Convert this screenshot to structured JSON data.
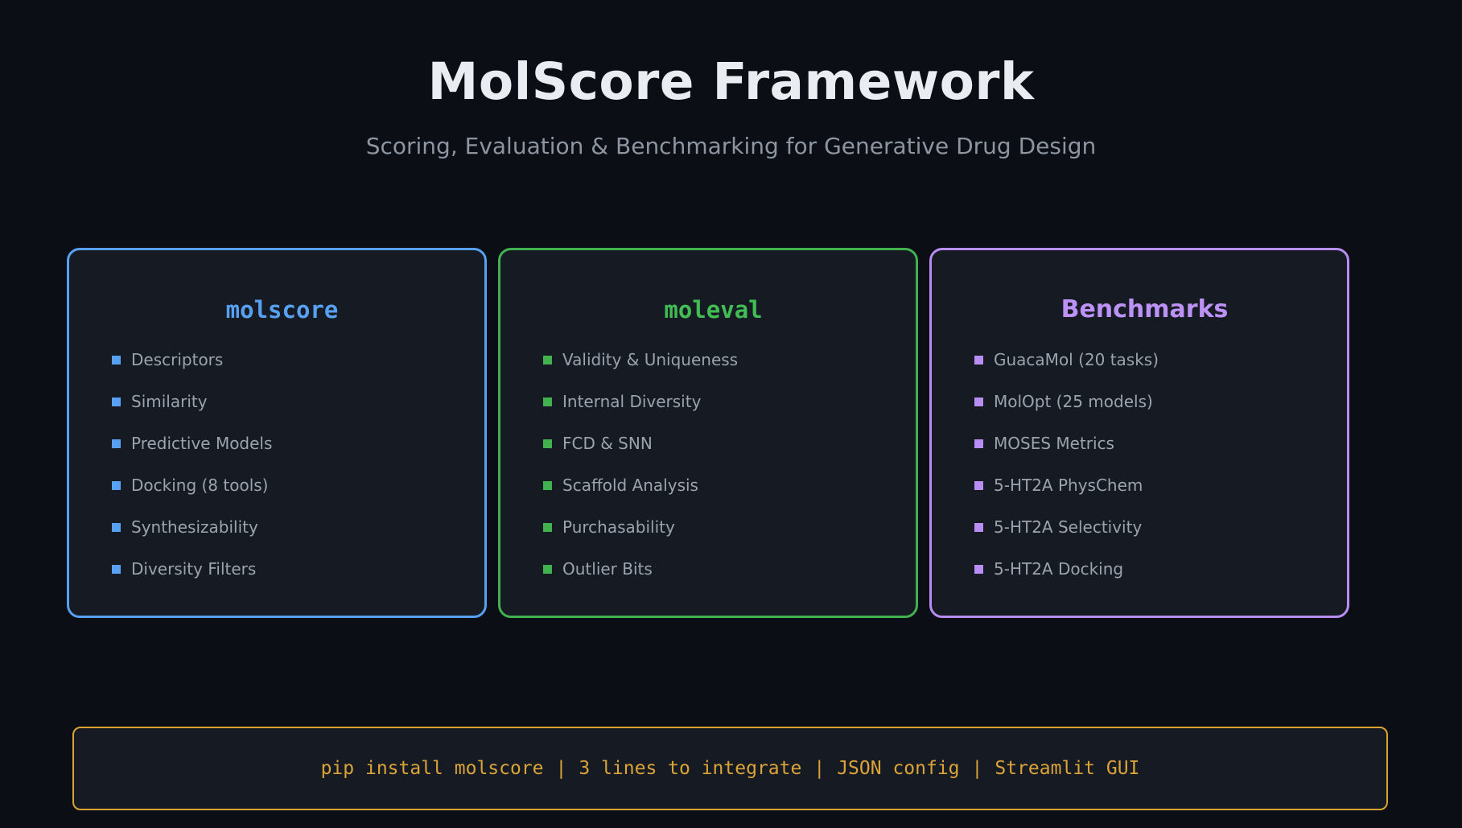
{
  "header": {
    "title": "MolScore Framework",
    "subtitle": "Scoring, Evaluation & Benchmarking for Generative Drug Design"
  },
  "cards": [
    {
      "title": "molscore",
      "accent_color": "#57a0f2",
      "items": [
        "Descriptors",
        "Similarity",
        "Predictive Models",
        "Docking (8 tools)",
        "Synthesizability",
        "Diversity Filters"
      ]
    },
    {
      "title": "moleval",
      "accent_color": "#42b251",
      "items": [
        "Validity & Uniqueness",
        "Internal Diversity",
        "FCD & SNN",
        "Scaffold Analysis",
        "Purchasability",
        "Outlier Bits"
      ]
    },
    {
      "title": "Benchmarks",
      "accent_color": "#b98ef4",
      "items": [
        "GuacaMol (20 tasks)",
        "MolOpt (25 models)",
        "MOSES Metrics",
        "5-HT2A PhysChem",
        "5-HT2A Selectivity",
        "5-HT2A Docking"
      ]
    }
  ],
  "footer": {
    "accent_color": "#d9a432",
    "separator": "|",
    "items": [
      "pip install molscore",
      "3 lines to integrate",
      "JSON config",
      "Streamlit GUI"
    ]
  }
}
